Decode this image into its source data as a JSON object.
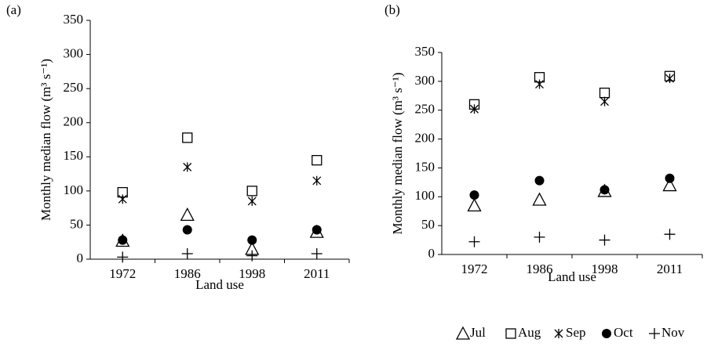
{
  "chart_data": [
    {
      "type": "scatter",
      "panel": "(a)",
      "x_label": "Land use",
      "y_label": "Monthly median flow (m³ s⁻¹)",
      "categories": [
        "1972",
        "1986",
        "1998",
        "2011"
      ],
      "ylim": [
        0,
        350
      ],
      "yticks": [
        0,
        50,
        100,
        150,
        200,
        250,
        300,
        350
      ],
      "series": [
        {
          "name": "Jul",
          "marker": "triangle",
          "values": [
            27,
            65,
            15,
            40
          ]
        },
        {
          "name": "Aug",
          "marker": "square",
          "values": [
            98,
            178,
            100,
            145
          ]
        },
        {
          "name": "Sep",
          "marker": "star",
          "values": [
            88,
            135,
            85,
            115
          ]
        },
        {
          "name": "Oct",
          "marker": "circle",
          "values": [
            28,
            43,
            28,
            43
          ]
        },
        {
          "name": "Nov",
          "marker": "plus",
          "values": [
            3,
            8,
            5,
            8
          ]
        }
      ]
    },
    {
      "type": "scatter",
      "panel": "(b)",
      "x_label": "Land use",
      "y_label": "Monthly median flow (m³ s⁻¹)",
      "categories": [
        "1972",
        "1986",
        "1998",
        "2011"
      ],
      "ylim": [
        0,
        350
      ],
      "yticks": [
        0,
        50,
        100,
        150,
        200,
        250,
        300,
        350
      ],
      "series": [
        {
          "marker": "triangle",
          "values": [
            85,
            95,
            110,
            120
          ]
        },
        {
          "marker": "square",
          "values": [
            260,
            307,
            280,
            309
          ]
        },
        {
          "marker": "star",
          "values": [
            252,
            295,
            265,
            305
          ]
        },
        {
          "marker": "circle",
          "values": [
            103,
            128,
            112,
            132
          ]
        },
        {
          "marker": "plus",
          "values": [
            22,
            30,
            25,
            35
          ]
        }
      ]
    }
  ]
}
